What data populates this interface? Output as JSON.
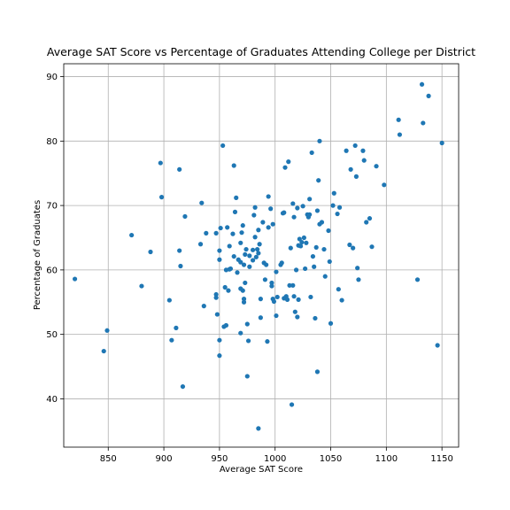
{
  "chart_data": {
    "type": "scatter",
    "title": "Average SAT Score vs Percentage of Graduates Attending College per District",
    "xlabel": "Average SAT Score",
    "ylabel": "Percentage of Graduates",
    "xlim": [
      810,
      1165
    ],
    "ylim": [
      32.5,
      92
    ],
    "x_ticks": [
      850,
      900,
      950,
      1000,
      1050,
      1100,
      1150
    ],
    "y_ticks": [
      40,
      50,
      60,
      70,
      80,
      90
    ],
    "grid": true,
    "marker_color": "#1f77b4",
    "series": [
      {
        "points": [
          [
            820,
            58.6
          ],
          [
            846,
            47.4
          ],
          [
            849,
            50.6
          ],
          [
            871,
            65.4
          ],
          [
            880,
            57.5
          ],
          [
            888,
            62.8
          ],
          [
            897,
            76.6
          ],
          [
            898,
            71.3
          ],
          [
            905,
            55.3
          ],
          [
            907,
            49.1
          ],
          [
            911,
            51.0
          ],
          [
            914,
            75.6
          ],
          [
            914,
            63.0
          ],
          [
            915,
            60.6
          ],
          [
            917,
            41.9
          ],
          [
            919,
            68.3
          ],
          [
            933,
            64.0
          ],
          [
            934,
            70.4
          ],
          [
            936,
            54.4
          ],
          [
            938,
            65.7
          ],
          [
            947,
            65.7
          ],
          [
            947,
            55.7
          ],
          [
            947,
            56.2
          ],
          [
            948,
            53.1
          ],
          [
            950,
            63.0
          ],
          [
            950,
            61.6
          ],
          [
            950,
            49.1
          ],
          [
            950,
            46.7
          ],
          [
            951,
            66.5
          ],
          [
            953,
            79.3
          ],
          [
            954,
            51.2
          ],
          [
            955,
            57.3
          ],
          [
            956,
            51.4
          ],
          [
            956,
            60.0
          ],
          [
            957,
            66.6
          ],
          [
            958,
            56.8
          ],
          [
            959,
            60.1
          ],
          [
            959,
            63.7
          ],
          [
            960,
            60.2
          ],
          [
            962,
            65.6
          ],
          [
            963,
            76.2
          ],
          [
            963,
            62.1
          ],
          [
            964,
            69.0
          ],
          [
            965,
            71.2
          ],
          [
            966,
            59.6
          ],
          [
            967,
            61.6
          ],
          [
            969,
            61.2
          ],
          [
            969,
            64.2
          ],
          [
            969,
            57.1
          ],
          [
            969,
            50.2
          ],
          [
            970,
            65.8
          ],
          [
            971,
            66.9
          ],
          [
            971,
            56.8
          ],
          [
            972,
            60.8
          ],
          [
            972,
            55.5
          ],
          [
            972,
            55.0
          ],
          [
            973,
            58.0
          ],
          [
            973,
            62.4
          ],
          [
            974,
            63.2
          ],
          [
            975,
            43.5
          ],
          [
            975,
            51.6
          ],
          [
            976,
            49.0
          ],
          [
            977,
            60.5
          ],
          [
            977,
            62.2
          ],
          [
            980,
            61.5
          ],
          [
            980,
            63.1
          ],
          [
            981,
            68.5
          ],
          [
            982,
            65.1
          ],
          [
            982,
            69.7
          ],
          [
            983,
            62.0
          ],
          [
            984,
            63.2
          ],
          [
            985,
            35.4
          ],
          [
            985,
            66.2
          ],
          [
            985,
            62.6
          ],
          [
            986,
            64.0
          ],
          [
            987,
            52.6
          ],
          [
            987,
            55.5
          ],
          [
            989,
            67.4
          ],
          [
            990,
            61.1
          ],
          [
            991,
            58.5
          ],
          [
            992,
            60.8
          ],
          [
            993,
            48.9
          ],
          [
            994,
            66.6
          ],
          [
            994,
            71.4
          ],
          [
            996,
            69.5
          ],
          [
            997,
            58.0
          ],
          [
            997,
            57.5
          ],
          [
            998,
            67.1
          ],
          [
            998,
            55.5
          ],
          [
            999,
            55.1
          ],
          [
            1001,
            52.9
          ],
          [
            1001,
            59.7
          ],
          [
            1002,
            55.8
          ],
          [
            1005,
            60.8
          ],
          [
            1006,
            61.1
          ],
          [
            1007,
            68.8
          ],
          [
            1008,
            68.9
          ],
          [
            1008,
            55.6
          ],
          [
            1009,
            75.9
          ],
          [
            1010,
            55.9
          ],
          [
            1011,
            55.4
          ],
          [
            1012,
            76.8
          ],
          [
            1013,
            57.6
          ],
          [
            1014,
            63.4
          ],
          [
            1015,
            39.1
          ],
          [
            1016,
            57.6
          ],
          [
            1016,
            70.3
          ],
          [
            1017,
            55.9
          ],
          [
            1017,
            68.2
          ],
          [
            1018,
            53.5
          ],
          [
            1019,
            60.0
          ],
          [
            1020,
            69.6
          ],
          [
            1020,
            52.7
          ],
          [
            1021,
            55.4
          ],
          [
            1021,
            63.8
          ],
          [
            1022,
            64.8
          ],
          [
            1023,
            63.7
          ],
          [
            1024,
            64.3
          ],
          [
            1025,
            69.9
          ],
          [
            1026,
            65.0
          ],
          [
            1027,
            60.2
          ],
          [
            1028,
            64.2
          ],
          [
            1029,
            68.6
          ],
          [
            1030,
            68.2
          ],
          [
            1031,
            71.0
          ],
          [
            1031,
            68.6
          ],
          [
            1032,
            55.8
          ],
          [
            1033,
            78.2
          ],
          [
            1034,
            62.1
          ],
          [
            1035,
            60.5
          ],
          [
            1036,
            52.5
          ],
          [
            1037,
            63.5
          ],
          [
            1038,
            69.2
          ],
          [
            1038,
            44.2
          ],
          [
            1039,
            73.9
          ],
          [
            1040,
            80.0
          ],
          [
            1040,
            67.1
          ],
          [
            1042,
            67.4
          ],
          [
            1044,
            63.2
          ],
          [
            1045,
            59.0
          ],
          [
            1048,
            66.1
          ],
          [
            1049,
            61.3
          ],
          [
            1050,
            51.7
          ],
          [
            1052,
            70.0
          ],
          [
            1053,
            71.9
          ],
          [
            1056,
            68.7
          ],
          [
            1057,
            57.0
          ],
          [
            1058,
            69.7
          ],
          [
            1060,
            55.3
          ],
          [
            1064,
            78.5
          ],
          [
            1067,
            63.9
          ],
          [
            1068,
            75.6
          ],
          [
            1070,
            63.4
          ],
          [
            1072,
            79.3
          ],
          [
            1073,
            74.5
          ],
          [
            1074,
            60.3
          ],
          [
            1075,
            58.5
          ],
          [
            1079,
            78.5
          ],
          [
            1080,
            77.0
          ],
          [
            1082,
            67.4
          ],
          [
            1085,
            68.0
          ],
          [
            1087,
            63.6
          ],
          [
            1091,
            76.1
          ],
          [
            1098,
            73.2
          ],
          [
            1111,
            83.3
          ],
          [
            1112,
            81.0
          ],
          [
            1128,
            58.5
          ],
          [
            1132,
            88.8
          ],
          [
            1133,
            82.8
          ],
          [
            1138,
            87.0
          ],
          [
            1146,
            48.3
          ],
          [
            1150,
            79.7
          ]
        ]
      }
    ]
  }
}
